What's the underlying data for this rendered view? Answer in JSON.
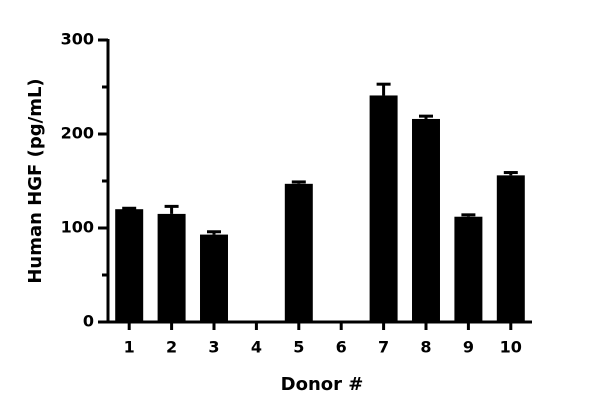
{
  "chart_data": {
    "type": "bar",
    "x_label": "Donor #",
    "y_label": "Human HGF (pg/mL)",
    "categories": [
      "1",
      "2",
      "3",
      "4",
      "5",
      "6",
      "7",
      "8",
      "9",
      "10"
    ],
    "values": [
      120,
      115,
      93,
      0,
      147,
      0,
      241,
      216,
      112,
      156
    ],
    "errors": [
      1,
      8,
      3,
      null,
      2,
      null,
      12,
      3,
      2,
      3
    ],
    "color": "#000000",
    "ylim": [
      0,
      300
    ],
    "yticks": [
      0,
      100,
      200,
      300
    ],
    "yminor_ticks": [
      50,
      150,
      250
    ],
    "grid": false
  }
}
